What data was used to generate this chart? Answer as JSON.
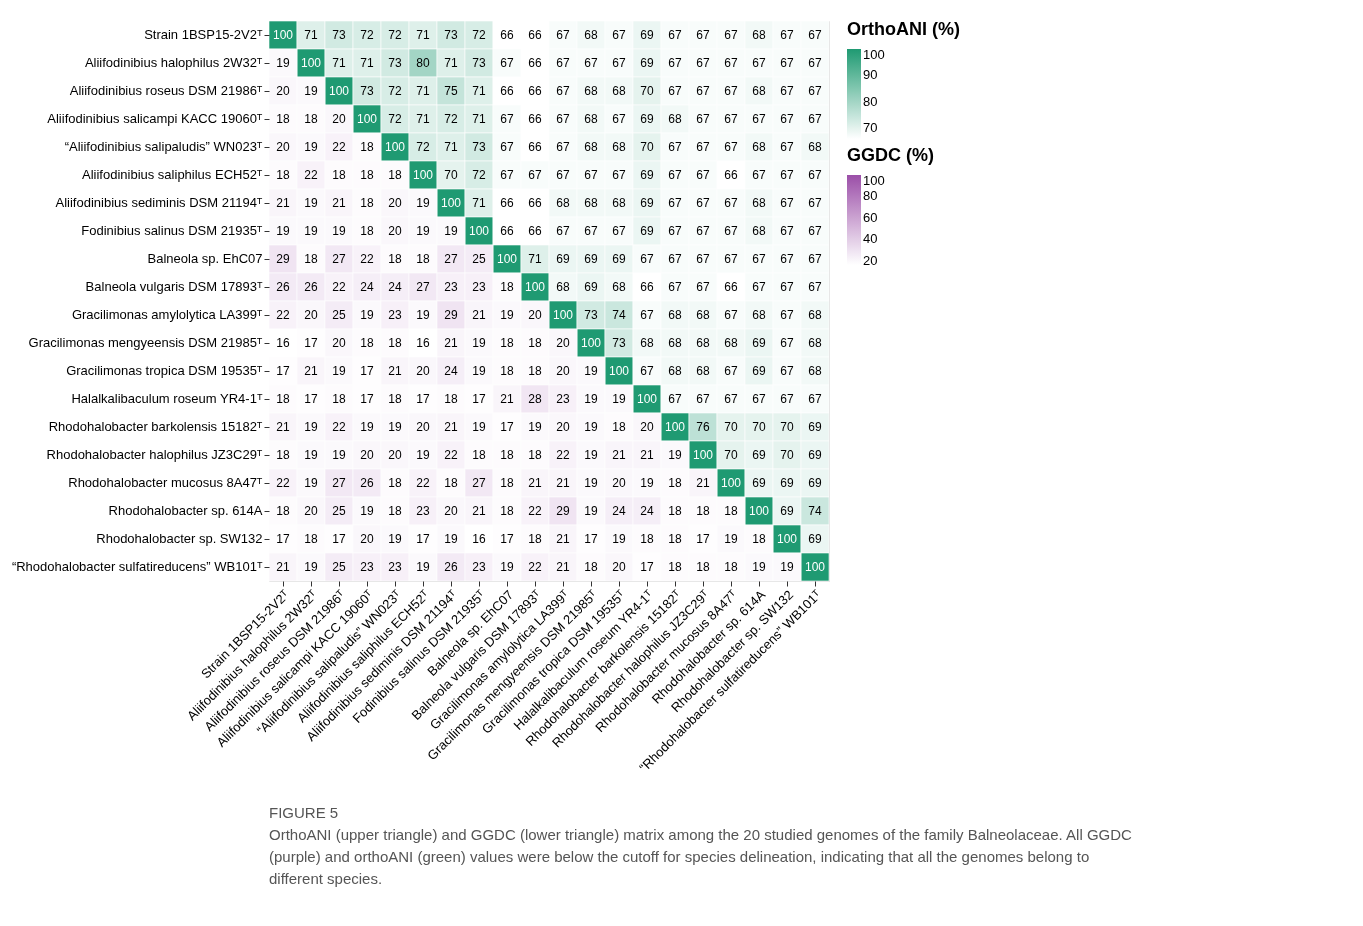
{
  "chart_data": [
    {
      "type": "heatmap",
      "legend_title": "OrthoANI (%)",
      "clim": [
        66,
        100
      ],
      "cticks": [
        70,
        80,
        90,
        100
      ],
      "data_labels": true,
      "categories": [
        "Strain 1BSP15-2V2ᵀ",
        "Aliifodinibius halophilus 2W32ᵀ",
        "Aliifodinibius roseus DSM 21986ᵀ",
        "Aliifodinibius salicampi KACC 19060ᵀ",
        "“Aliifodinibius salipaludis” WN023ᵀ",
        "Aliifodinibius saliphilus ECH52ᵀ",
        "Aliifodinibius sediminis DSM 21194ᵀ",
        "Fodinibius salinus DSM 21935ᵀ",
        "Balneola sp. EhC07",
        "Balneola vulgaris DSM 17893ᵀ",
        "Gracilimonas amylolytica LA399ᵀ",
        "Gracilimonas mengyeensis DSM 21985ᵀ",
        "Gracilimonas tropica DSM 19535ᵀ",
        "Halalkalibaculum roseum YR4-1ᵀ",
        "Rhodohalobacter barkolensis 15182ᵀ",
        "Rhodohalobacter halophilus JZ3C29ᵀ",
        "Rhodohalobacter mucosus 8A47ᵀ",
        "Rhodohalobacter sp. 614A",
        "Rhodohalobacter sp. SW132",
        "“Rhodohalobacter sulfatireducens” WB101ᵀ"
      ],
      "y_categories": [
        "Strain 1BSP15-2V2ᵀ",
        "Aliifodinibius halophilus 2W32ᵀ",
        "Aliifodinibius roseus DSM 21986ᵀ",
        "Aliifodinibius salicampi KACC 19060ᵀ",
        "“Aliifodinibius salipaludis” WN023ᵀ",
        "Aliifodinibius saliphilus ECH52ᵀ",
        "Aliifodinibius sediminis DSM 21194ᵀ",
        "Fodinibius salinus DSM 21935ᵀ",
        "Balneola sp. EhC07",
        "Balneola vulgaris DSM 17893ᵀ",
        "Gracilimonas amylolytica LA399ᵀ",
        "Gracilimonas mengyeensis DSM 21985ᵀ",
        "Gracilimonas tropica DSM 19535ᵀ",
        "Halalkalibaculum roseum YR4-1ᵀ",
        "Rhodohalobacter barkolensis 15182ᵀ",
        "Rhodohalobacter halophilus JZ3C29ᵀ",
        "Rhodohalobacter mucosus 8A47ᵀ",
        "Rhodohalobacter sp. 614A",
        "Rhodohalobacter sp. SW132",
        "“Rhodohalobacter sulfatireducens” WB101ᵀ"
      ],
      "cells": [
        [
          100,
          71,
          73,
          72,
          72,
          71,
          73,
          72,
          66,
          66,
          67,
          68,
          67,
          69,
          67,
          67,
          67,
          68,
          67,
          67
        ],
        [
          null,
          100,
          71,
          71,
          73,
          80,
          71,
          73,
          67,
          66,
          67,
          67,
          67,
          69,
          67,
          67,
          67,
          67,
          67,
          67
        ],
        [
          null,
          null,
          100,
          73,
          72,
          71,
          75,
          71,
          66,
          66,
          67,
          68,
          68,
          70,
          67,
          67,
          67,
          68,
          67,
          67
        ],
        [
          null,
          null,
          null,
          100,
          72,
          71,
          72,
          71,
          67,
          66,
          67,
          68,
          67,
          69,
          68,
          67,
          67,
          67,
          67,
          67
        ],
        [
          null,
          null,
          null,
          null,
          100,
          72,
          71,
          73,
          67,
          66,
          67,
          68,
          68,
          70,
          67,
          67,
          67,
          68,
          67,
          68
        ],
        [
          null,
          null,
          null,
          null,
          null,
          100,
          70,
          72,
          67,
          67,
          67,
          67,
          67,
          69,
          67,
          67,
          66,
          67,
          67,
          67
        ],
        [
          null,
          null,
          null,
          null,
          null,
          null,
          100,
          71,
          66,
          66,
          68,
          68,
          68,
          69,
          67,
          67,
          67,
          68,
          67,
          67
        ],
        [
          null,
          null,
          null,
          null,
          null,
          null,
          null,
          100,
          66,
          66,
          67,
          67,
          67,
          69,
          67,
          67,
          67,
          68,
          67,
          67
        ],
        [
          null,
          null,
          null,
          null,
          null,
          null,
          null,
          null,
          100,
          71,
          69,
          69,
          69,
          67,
          67,
          67,
          67,
          67,
          67,
          67
        ],
        [
          null,
          null,
          null,
          null,
          null,
          null,
          null,
          null,
          null,
          100,
          68,
          69,
          68,
          66,
          67,
          67,
          66,
          67,
          67,
          67
        ],
        [
          null,
          null,
          null,
          null,
          null,
          null,
          null,
          null,
          null,
          null,
          100,
          73,
          74,
          67,
          68,
          68,
          67,
          68,
          67,
          68
        ],
        [
          null,
          null,
          null,
          null,
          null,
          null,
          null,
          null,
          null,
          null,
          null,
          100,
          73,
          68,
          68,
          68,
          68,
          69,
          67,
          68
        ],
        [
          null,
          null,
          null,
          null,
          null,
          null,
          null,
          null,
          null,
          null,
          null,
          null,
          100,
          67,
          68,
          68,
          67,
          69,
          67,
          68
        ],
        [
          null,
          null,
          null,
          null,
          null,
          null,
          null,
          null,
          null,
          null,
          null,
          null,
          null,
          100,
          67,
          67,
          67,
          67,
          67,
          67
        ],
        [
          null,
          null,
          null,
          null,
          null,
          null,
          null,
          null,
          null,
          null,
          null,
          null,
          null,
          null,
          100,
          76,
          70,
          70,
          70,
          69
        ],
        [
          null,
          null,
          null,
          null,
          null,
          null,
          null,
          null,
          null,
          null,
          null,
          null,
          null,
          null,
          null,
          100,
          70,
          69,
          70,
          69
        ],
        [
          null,
          null,
          null,
          null,
          null,
          null,
          null,
          null,
          null,
          null,
          null,
          null,
          null,
          null,
          null,
          null,
          100,
          69,
          69,
          69
        ],
        [
          null,
          null,
          null,
          null,
          null,
          null,
          null,
          null,
          null,
          null,
          null,
          null,
          null,
          null,
          null,
          null,
          null,
          100,
          69,
          74
        ],
        [
          null,
          null,
          null,
          null,
          null,
          null,
          null,
          null,
          null,
          null,
          null,
          null,
          null,
          null,
          null,
          null,
          null,
          null,
          100,
          69
        ],
        [
          null,
          null,
          null,
          null,
          null,
          null,
          null,
          null,
          null,
          null,
          null,
          null,
          null,
          null,
          null,
          null,
          null,
          null,
          null,
          100
        ]
      ],
      "colors": [
        "#ffffff",
        "#1f9a72"
      ],
      "annotations": [
        "FIGURE 5",
        "OrthoANI (upper triangle) and GGDC (lower triangle) matrix among the 20 studied genomes of the family Balneolaceae. All GGDC (purple) and orthoANI (green) values were below the cutoff for species delineation, indicating that all the genomes belong to different species."
      ]
    },
    {
      "type": "heatmap",
      "legend_title": "GGDC (%)",
      "tick_labels": false,
      "clim": [
        16,
        100
      ],
      "cticks": [
        20,
        40,
        60,
        80,
        100
      ],
      "data_labels": true,
      "categories": [
        "Strain 1BSP15-2V2ᵀ",
        "Aliifodinibius halophilus 2W32ᵀ",
        "Aliifodinibius roseus DSM 21986ᵀ",
        "Aliifodinibius salicampi KACC 19060ᵀ",
        "“Aliifodinibius salipaludis” WN023ᵀ",
        "Aliifodinibius saliphilus ECH52ᵀ",
        "Aliifodinibius sediminis DSM 21194ᵀ",
        "Fodinibius salinus DSM 21935ᵀ",
        "Balneola sp. EhC07",
        "Balneola vulgaris DSM 17893ᵀ",
        "Gracilimonas amylolytica LA399ᵀ",
        "Gracilimonas mengyeensis DSM 21985ᵀ",
        "Gracilimonas tropica DSM 19535ᵀ",
        "Halalkalibaculum roseum YR4-1ᵀ",
        "Rhodohalobacter barkolensis 15182ᵀ",
        "Rhodohalobacter halophilus JZ3C29ᵀ",
        "Rhodohalobacter mucosus 8A47ᵀ",
        "Rhodohalobacter sp. 614A",
        "Rhodohalobacter sp. SW132",
        "“Rhodohalobacter sulfatireducens” WB101ᵀ"
      ],
      "y_categories": [
        "Strain 1BSP15-2V2ᵀ",
        "Aliifodinibius halophilus 2W32ᵀ",
        "Aliifodinibius roseus DSM 21986ᵀ",
        "Aliifodinibius salicampi KACC 19060ᵀ",
        "“Aliifodinibius salipaludis” WN023ᵀ",
        "Aliifodinibius saliphilus ECH52ᵀ",
        "Aliifodinibius sediminis DSM 21194ᵀ",
        "Fodinibius salinus DSM 21935ᵀ",
        "Balneola sp. EhC07",
        "Balneola vulgaris DSM 17893ᵀ",
        "Gracilimonas amylolytica LA399ᵀ",
        "Gracilimonas mengyeensis DSM 21985ᵀ",
        "Gracilimonas tropica DSM 19535ᵀ",
        "Halalkalibaculum roseum YR4-1ᵀ",
        "Rhodohalobacter barkolensis 15182ᵀ",
        "Rhodohalobacter halophilus JZ3C29ᵀ",
        "Rhodohalobacter mucosus 8A47ᵀ",
        "Rhodohalobacter sp. 614A",
        "Rhodohalobacter sp. SW132",
        "“Rhodohalobacter sulfatireducens” WB101ᵀ"
      ],
      "cells": [
        [
          null,
          null,
          null,
          null,
          null,
          null,
          null,
          null,
          null,
          null,
          null,
          null,
          null,
          null,
          null,
          null,
          null,
          null,
          null,
          null
        ],
        [
          19,
          null,
          null,
          null,
          null,
          null,
          null,
          null,
          null,
          null,
          null,
          null,
          null,
          null,
          null,
          null,
          null,
          null,
          null,
          null
        ],
        [
          20,
          19,
          null,
          null,
          null,
          null,
          null,
          null,
          null,
          null,
          null,
          null,
          null,
          null,
          null,
          null,
          null,
          null,
          null,
          null
        ],
        [
          18,
          18,
          20,
          null,
          null,
          null,
          null,
          null,
          null,
          null,
          null,
          null,
          null,
          null,
          null,
          null,
          null,
          null,
          null,
          null
        ],
        [
          20,
          19,
          22,
          18,
          null,
          null,
          null,
          null,
          null,
          null,
          null,
          null,
          null,
          null,
          null,
          null,
          null,
          null,
          null,
          null
        ],
        [
          18,
          22,
          18,
          18,
          18,
          null,
          null,
          null,
          null,
          null,
          null,
          null,
          null,
          null,
          null,
          null,
          null,
          null,
          null,
          null
        ],
        [
          21,
          19,
          21,
          18,
          20,
          19,
          null,
          null,
          null,
          null,
          null,
          null,
          null,
          null,
          null,
          null,
          null,
          null,
          null,
          null
        ],
        [
          19,
          19,
          19,
          18,
          20,
          19,
          19,
          null,
          null,
          null,
          null,
          null,
          null,
          null,
          null,
          null,
          null,
          null,
          null,
          null
        ],
        [
          29,
          18,
          27,
          22,
          18,
          18,
          27,
          25,
          null,
          null,
          null,
          null,
          null,
          null,
          null,
          null,
          null,
          null,
          null,
          null
        ],
        [
          26,
          26,
          22,
          24,
          24,
          27,
          23,
          23,
          18,
          null,
          null,
          null,
          null,
          null,
          null,
          null,
          null,
          null,
          null,
          null
        ],
        [
          22,
          20,
          25,
          19,
          23,
          19,
          29,
          21,
          19,
          20,
          null,
          null,
          null,
          null,
          null,
          null,
          null,
          null,
          null,
          null
        ],
        [
          16,
          17,
          20,
          18,
          18,
          16,
          21,
          19,
          18,
          18,
          20,
          null,
          null,
          null,
          null,
          null,
          null,
          null,
          null,
          null
        ],
        [
          17,
          21,
          19,
          17,
          21,
          20,
          24,
          19,
          18,
          18,
          20,
          19,
          null,
          null,
          null,
          null,
          null,
          null,
          null,
          null
        ],
        [
          18,
          17,
          18,
          17,
          18,
          17,
          18,
          17,
          21,
          28,
          23,
          19,
          19,
          null,
          null,
          null,
          null,
          null,
          null,
          null
        ],
        [
          21,
          19,
          22,
          19,
          19,
          20,
          21,
          19,
          17,
          19,
          20,
          19,
          18,
          20,
          null,
          null,
          null,
          null,
          null,
          null
        ],
        [
          18,
          19,
          19,
          20,
          20,
          19,
          22,
          18,
          18,
          18,
          22,
          19,
          21,
          21,
          19,
          null,
          null,
          null,
          null,
          null
        ],
        [
          22,
          19,
          27,
          26,
          18,
          22,
          18,
          27,
          18,
          21,
          21,
          19,
          20,
          19,
          18,
          21,
          null,
          null,
          null,
          null
        ],
        [
          18,
          20,
          25,
          19,
          18,
          23,
          20,
          21,
          18,
          22,
          29,
          19,
          24,
          24,
          18,
          18,
          18,
          null,
          null,
          null
        ],
        [
          17,
          18,
          17,
          20,
          19,
          17,
          19,
          16,
          17,
          18,
          21,
          17,
          19,
          18,
          18,
          17,
          19,
          18,
          null,
          null
        ],
        [
          21,
          19,
          25,
          23,
          23,
          19,
          26,
          23,
          19,
          22,
          21,
          18,
          20,
          17,
          18,
          18,
          18,
          19,
          19,
          null
        ]
      ],
      "colors": [
        "#ffffff",
        "#9b4fa8"
      ]
    }
  ]
}
